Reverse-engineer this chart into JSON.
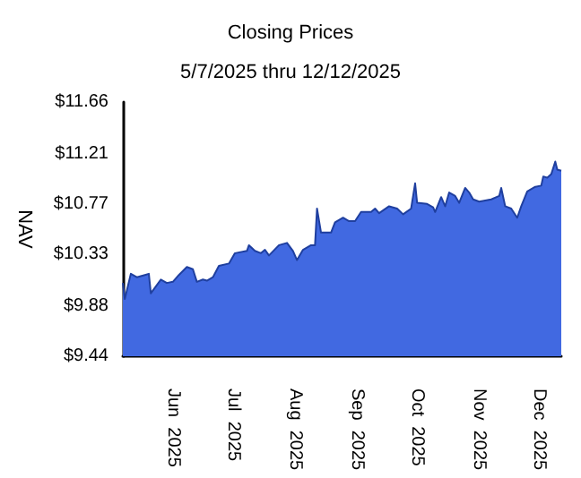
{
  "chart_data": {
    "type": "area",
    "title": "Closing Prices",
    "subtitle": "5/7/2025 thru 12/12/2025",
    "ylabel": "NAV",
    "x": [
      "2025-05-07",
      "2025-05-08",
      "2025-05-11",
      "2025-05-14",
      "2025-05-18",
      "2025-05-20",
      "2025-05-21",
      "2025-05-26",
      "2025-05-29",
      "2025-06-01",
      "2025-06-04",
      "2025-06-08",
      "2025-06-11",
      "2025-06-13",
      "2025-06-16",
      "2025-06-18",
      "2025-06-21",
      "2025-06-24",
      "2025-06-29",
      "2025-07-02",
      "2025-07-08",
      "2025-07-09",
      "2025-07-12",
      "2025-07-15",
      "2025-07-17",
      "2025-07-19",
      "2025-07-24",
      "2025-07-28",
      "2025-07-31",
      "2025-08-02",
      "2025-08-05",
      "2025-08-09",
      "2025-08-11",
      "2025-08-12",
      "2025-08-14",
      "2025-08-19",
      "2025-08-21",
      "2025-08-25",
      "2025-08-28",
      "2025-08-31",
      "2025-09-03",
      "2025-09-08",
      "2025-09-10",
      "2025-09-12",
      "2025-09-17",
      "2025-09-21",
      "2025-09-24",
      "2025-09-28",
      "2025-09-30",
      "2025-10-01",
      "2025-10-06",
      "2025-10-09",
      "2025-10-10",
      "2025-10-13",
      "2025-10-15",
      "2025-10-17",
      "2025-10-20",
      "2025-10-22",
      "2025-10-25",
      "2025-10-27",
      "2025-10-29",
      "2025-11-01",
      "2025-11-04",
      "2025-11-07",
      "2025-11-11",
      "2025-11-12",
      "2025-11-14",
      "2025-11-17",
      "2025-11-20",
      "2025-11-22",
      "2025-11-25",
      "2025-11-29",
      "2025-12-02",
      "2025-12-03",
      "2025-12-05",
      "2025-12-07",
      "2025-12-09",
      "2025-12-10",
      "2025-12-12"
    ],
    "series": [
      {
        "color": "#4169e1",
        "values": [
          10.08,
          9.94,
          10.16,
          10.13,
          10.15,
          10.16,
          9.99,
          10.11,
          10.08,
          10.09,
          10.15,
          10.22,
          10.2,
          10.09,
          10.11,
          10.1,
          10.13,
          10.23,
          10.25,
          10.34,
          10.36,
          10.41,
          10.36,
          10.34,
          10.37,
          10.32,
          10.41,
          10.43,
          10.36,
          10.28,
          10.37,
          10.41,
          10.41,
          10.73,
          10.52,
          10.52,
          10.61,
          10.65,
          10.62,
          10.62,
          10.7,
          10.7,
          10.73,
          10.69,
          10.75,
          10.73,
          10.68,
          10.73,
          10.95,
          10.78,
          10.77,
          10.74,
          10.7,
          10.83,
          10.75,
          10.87,
          10.84,
          10.78,
          10.91,
          10.87,
          10.81,
          10.79,
          10.8,
          10.81,
          10.84,
          10.91,
          10.75,
          10.73,
          10.65,
          10.75,
          10.88,
          10.92,
          10.93,
          11.01,
          11.0,
          11.03,
          11.14,
          11.07,
          11.06
        ]
      }
    ],
    "xlim": [
      "2025-05-07",
      "2025-12-12"
    ],
    "xticks": [
      {
        "value": "2025-06-01",
        "label": "Jun  2025"
      },
      {
        "value": "2025-07-01",
        "label": "Jul  2025"
      },
      {
        "value": "2025-08-01",
        "label": "Aug  2025"
      },
      {
        "value": "2025-09-01",
        "label": "Sep  2025"
      },
      {
        "value": "2025-10-01",
        "label": "Oct  2025"
      },
      {
        "value": "2025-11-01",
        "label": "Nov  2025"
      },
      {
        "value": "2025-12-01",
        "label": "Dec  2025"
      }
    ],
    "ylim": [
      9.44,
      11.66
    ],
    "yticks": [
      {
        "value": 9.44,
        "label": "$9.44"
      },
      {
        "value": 9.88,
        "label": "$9.88"
      },
      {
        "value": 10.33,
        "label": "$10.33"
      },
      {
        "value": 10.77,
        "label": "$10.77"
      },
      {
        "value": 11.21,
        "label": "$11.21"
      },
      {
        "value": 11.66,
        "label": "$11.66"
      }
    ],
    "grid": false
  }
}
